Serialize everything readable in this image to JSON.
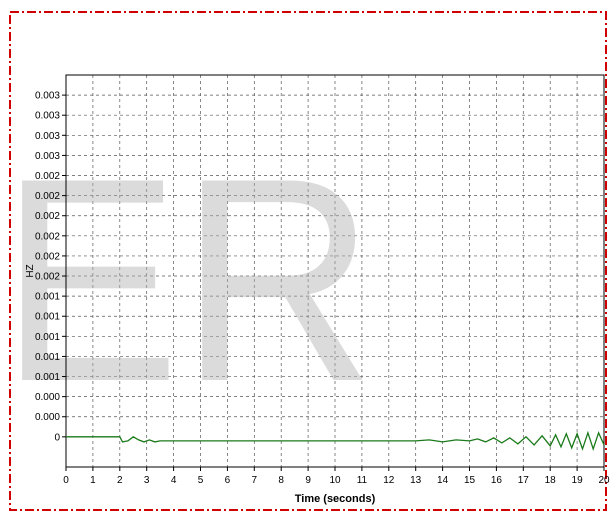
{
  "watermark": "ER",
  "chart_data": {
    "type": "line",
    "title": "",
    "xlabel": "Time (seconds)",
    "ylabel": "HZ",
    "xlim": [
      0,
      20
    ],
    "ylim": [
      -0.0003,
      0.0036
    ],
    "grid": true,
    "x_ticks": [
      0,
      1,
      2,
      3,
      4,
      5,
      6,
      7,
      8,
      9,
      10,
      11,
      12,
      13,
      14,
      15,
      16,
      17,
      18,
      19,
      20
    ],
    "y_tick_values": [
      0,
      0.0002,
      0.0004,
      0.0006,
      0.0008,
      0.001,
      0.0012,
      0.0014,
      0.0016,
      0.0018,
      0.002,
      0.0022,
      0.0024,
      0.0026,
      0.0028,
      0.003,
      0.0032,
      0.0034
    ],
    "y_tick_labels": [
      "0",
      "0.000",
      "0.000",
      "0.001",
      "0.001",
      "0.001",
      "0.001",
      "0.001",
      "0.002",
      "0.002",
      "0.002",
      "0.002",
      "0.002",
      "0.002",
      "0.003",
      "0.003",
      "0.003",
      "0.003"
    ],
    "series": [
      {
        "color": "#1a7a1a",
        "x": [
          0,
          2.0,
          2.1,
          2.3,
          2.5,
          2.7,
          2.9,
          3.1,
          3.3,
          3.5,
          4,
          5,
          6,
          7,
          8,
          9,
          10,
          11,
          12,
          13,
          13.5,
          14,
          14.5,
          15,
          15.3,
          15.6,
          15.9,
          16.2,
          16.5,
          16.8,
          17.1,
          17.4,
          17.7,
          18.0,
          18.2,
          18.4,
          18.6,
          18.8,
          19.0,
          19.2,
          19.4,
          19.6,
          19.8,
          20
        ],
        "y": [
          0,
          0,
          -5e-05,
          -4e-05,
          0.0,
          -3e-05,
          -5e-05,
          -3e-05,
          -5e-05,
          -4e-05,
          -4e-05,
          -4e-05,
          -4e-05,
          -4e-05,
          -4e-05,
          -4e-05,
          -4e-05,
          -4e-05,
          -4e-05,
          -4e-05,
          -3e-05,
          -5e-05,
          -3e-05,
          -4e-05,
          -2e-05,
          -5e-05,
          -1e-05,
          -6e-05,
          -1e-05,
          -7e-05,
          0.0,
          -8e-05,
          1e-05,
          -9e-05,
          2e-05,
          -0.0001,
          3e-05,
          -0.00011,
          3e-05,
          -0.00012,
          4e-05,
          -0.00012,
          4e-05,
          -8e-05
        ]
      }
    ]
  }
}
